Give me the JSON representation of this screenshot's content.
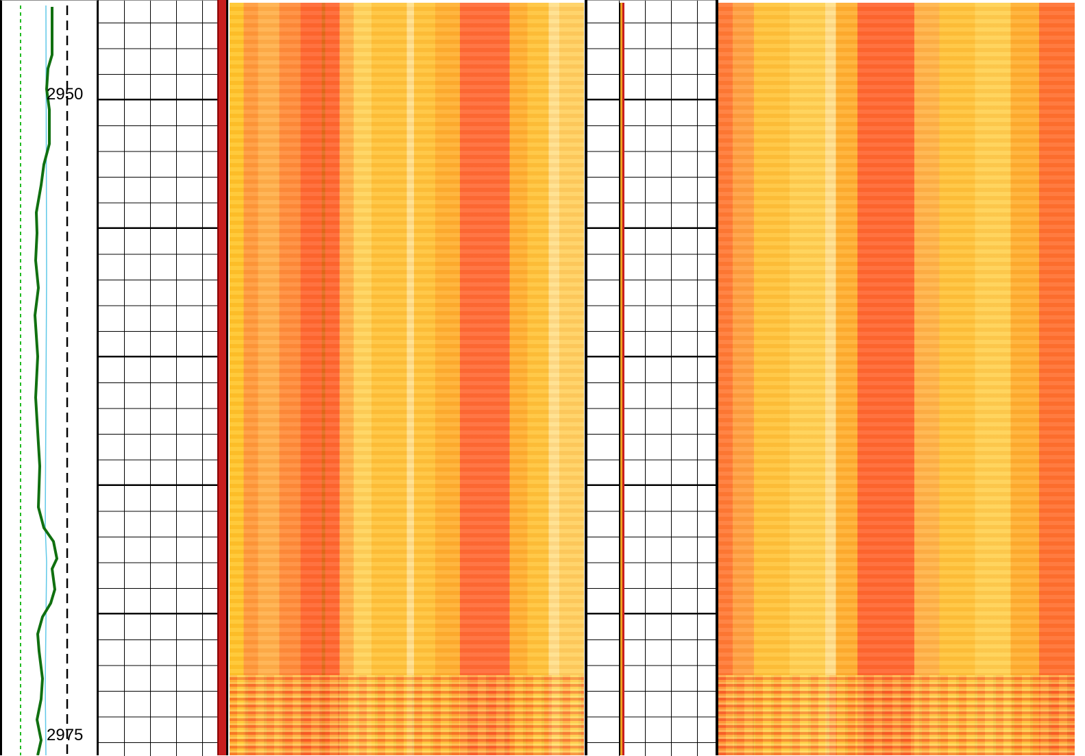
{
  "depth_track": {
    "labels": [
      "2950",
      "2975"
    ]
  }
}
